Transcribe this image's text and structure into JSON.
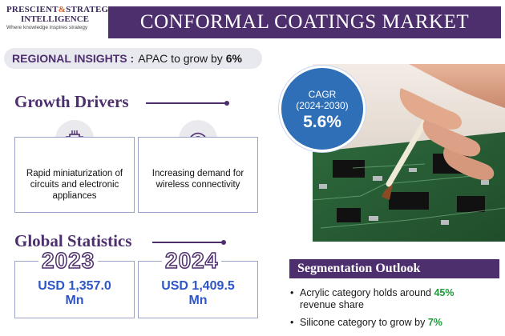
{
  "logo": {
    "line1_a": "PRESCIENT",
    "line1_amp": "&",
    "line1_b": "STRATEGIC",
    "line2": "INTELLIGENCE",
    "tagline": "Where knowledge inspires strategy"
  },
  "title": "CONFORMAL COATINGS MARKET",
  "regional": {
    "label": "REGIONAL INSIGHTS :",
    "text": "APAC to grow by",
    "value": "6%"
  },
  "growth_drivers": {
    "heading": "Growth Drivers",
    "items": [
      {
        "text": "Rapid miniaturization of circuits and electronic appliances",
        "icon": "circuit-chip-icon"
      },
      {
        "text": "Increasing demand for wireless connectivity",
        "icon": "wireless-network-icon"
      }
    ]
  },
  "global_statistics": {
    "heading": "Global Statistics",
    "items": [
      {
        "year": "2023",
        "value": "USD 1,357.0 Mn"
      },
      {
        "year": "2024",
        "value": "USD 1,409.5 Mn"
      }
    ]
  },
  "cagr": {
    "label": "CAGR",
    "period": "(2024-2030)",
    "value": "5.6%"
  },
  "segmentation": {
    "heading": "Segmentation Outlook",
    "items": [
      {
        "text_before": "Acrylic category holds around",
        "highlight": "45%",
        "text_after": "revenue share"
      },
      {
        "text_before": "Silicone category to grow by",
        "highlight": "7%",
        "text_after": ""
      }
    ]
  },
  "colors": {
    "brand_purple": "#4e2f6e",
    "accent_blue": "#2e6fb7",
    "value_blue": "#2e56c6",
    "highlight_green": "#1f9a3a",
    "logo_orange": "#e05a1e"
  }
}
